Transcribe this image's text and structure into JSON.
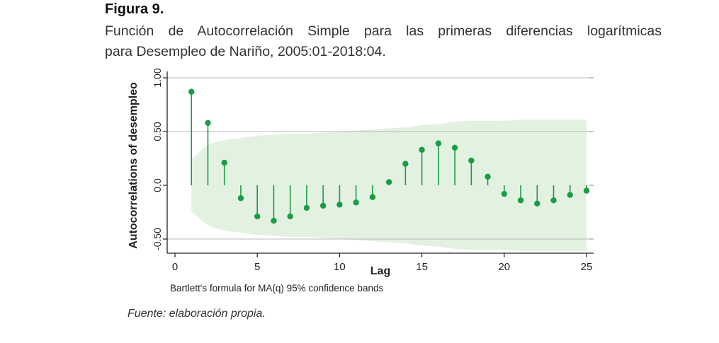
{
  "figure": {
    "label": "Figura 9.",
    "caption_line1": "Función de Autocorrelación Simple para las primeras diferencias logarítmicas",
    "caption_line2": "para Desempleo de Nariño, 2005:01-2018:04.",
    "note": "Bartlett's formula for MA(q) 95% confidence bands",
    "source": "Fuente: elaboración propia."
  },
  "chart_data": {
    "type": "stem",
    "xlabel": "Lag",
    "ylabel": "Autocorrelations of desempleo",
    "xlim": [
      0,
      25
    ],
    "ylim": [
      -0.65,
      1.05
    ],
    "xticks": [
      0,
      5,
      10,
      15,
      20,
      25
    ],
    "xtick_labels": [
      "0",
      "5",
      "10",
      "15",
      "20",
      "25"
    ],
    "yticks": [
      -0.5,
      0.0,
      0.5,
      1.0
    ],
    "ytick_labels": [
      "-0.50",
      "0.0",
      "0.50",
      "1.00"
    ],
    "grid": true,
    "series": [
      {
        "x": [
          1,
          2,
          3,
          4,
          5,
          6,
          7,
          8,
          9,
          10,
          11,
          12,
          13,
          14,
          15,
          16,
          17,
          18,
          19,
          20,
          21,
          22,
          23,
          24,
          25
        ],
        "values": [
          0.87,
          0.58,
          0.21,
          -0.12,
          -0.29,
          -0.33,
          -0.29,
          -0.21,
          -0.19,
          -0.18,
          -0.16,
          -0.11,
          0.03,
          0.2,
          0.33,
          0.39,
          0.35,
          0.23,
          0.08,
          -0.08,
          -0.14,
          -0.17,
          -0.14,
          -0.09,
          -0.05
        ]
      }
    ],
    "confidence_band": {
      "x": [
        1,
        2,
        3,
        4,
        5,
        6,
        7,
        8,
        9,
        10,
        11,
        12,
        13,
        14,
        15,
        16,
        17,
        18,
        19,
        20,
        21,
        22,
        23,
        24,
        25
      ],
      "upper": [
        0.24,
        0.37,
        0.42,
        0.44,
        0.46,
        0.47,
        0.48,
        0.48,
        0.49,
        0.5,
        0.51,
        0.52,
        0.53,
        0.54,
        0.56,
        0.57,
        0.59,
        0.6,
        0.6,
        0.6,
        0.61,
        0.61,
        0.61,
        0.61,
        0.61
      ],
      "lower": [
        -0.24,
        -0.37,
        -0.42,
        -0.44,
        -0.46,
        -0.47,
        -0.48,
        -0.48,
        -0.49,
        -0.5,
        -0.51,
        -0.52,
        -0.53,
        -0.54,
        -0.56,
        -0.57,
        -0.59,
        -0.6,
        -0.6,
        -0.6,
        -0.61,
        -0.61,
        -0.61,
        -0.61,
        -0.61
      ]
    },
    "colors": {
      "stem": "#1a9c45",
      "band": "#e3f1e1",
      "grid": "#b8b8b8",
      "axis": "#222222"
    }
  }
}
